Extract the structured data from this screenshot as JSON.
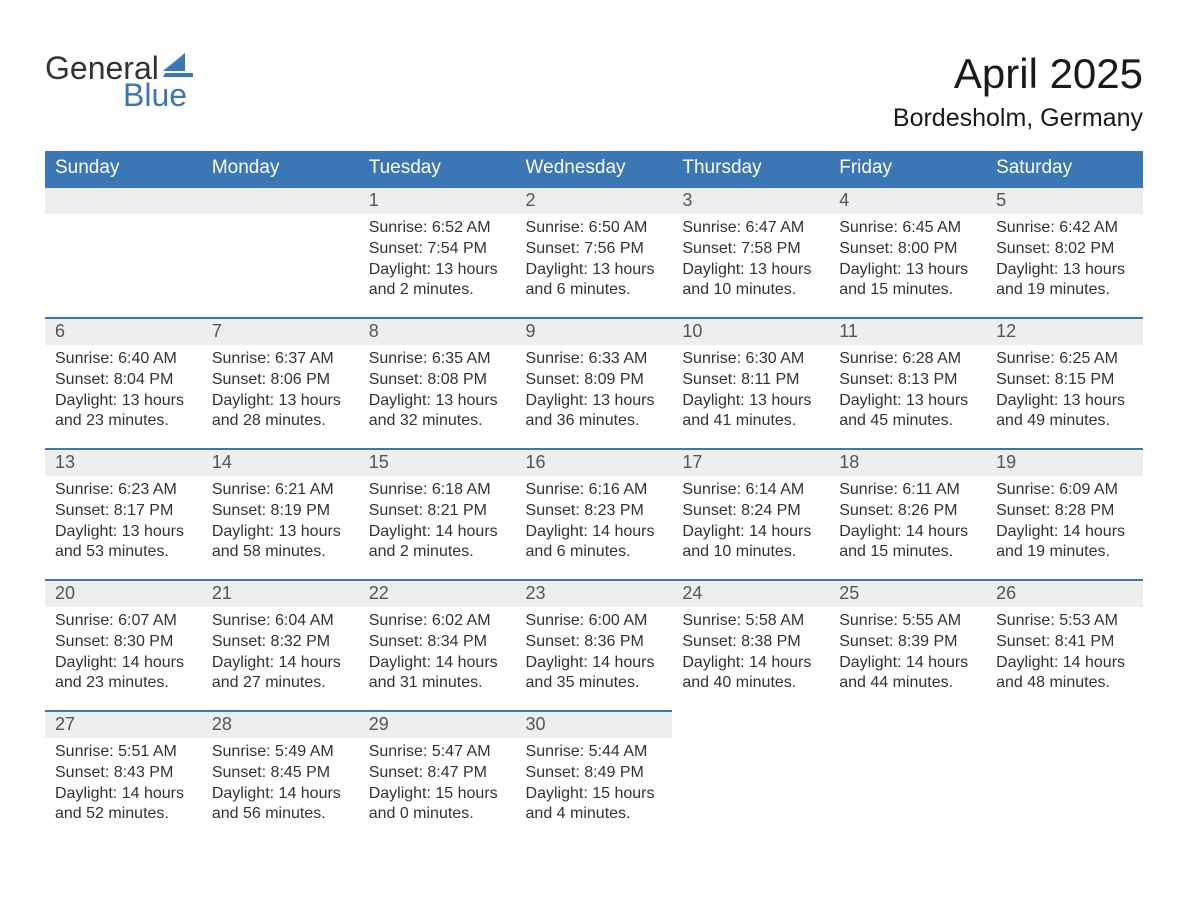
{
  "logo": {
    "text1": "General",
    "text2": "Blue",
    "flag_color": "#3b77b5"
  },
  "title": "April 2025",
  "location": "Bordesholm, Germany",
  "colors": {
    "header_bg": "#3b77b5",
    "header_text": "#ffffff",
    "daynum_bg": "#eeeeee",
    "week_border": "#3b77b5",
    "body_text": "#333333",
    "page_bg": "#ffffff"
  },
  "fonts": {
    "title_size": 42,
    "location_size": 25,
    "dayheader_size": 19,
    "daynum_size": 18,
    "body_size": 16
  },
  "day_headers": [
    "Sunday",
    "Monday",
    "Tuesday",
    "Wednesday",
    "Thursday",
    "Friday",
    "Saturday"
  ],
  "weeks": [
    [
      null,
      null,
      {
        "n": "1",
        "sr": "Sunrise: 6:52 AM",
        "ss": "Sunset: 7:54 PM",
        "dl": "Daylight: 13 hours and 2 minutes."
      },
      {
        "n": "2",
        "sr": "Sunrise: 6:50 AM",
        "ss": "Sunset: 7:56 PM",
        "dl": "Daylight: 13 hours and 6 minutes."
      },
      {
        "n": "3",
        "sr": "Sunrise: 6:47 AM",
        "ss": "Sunset: 7:58 PM",
        "dl": "Daylight: 13 hours and 10 minutes."
      },
      {
        "n": "4",
        "sr": "Sunrise: 6:45 AM",
        "ss": "Sunset: 8:00 PM",
        "dl": "Daylight: 13 hours and 15 minutes."
      },
      {
        "n": "5",
        "sr": "Sunrise: 6:42 AM",
        "ss": "Sunset: 8:02 PM",
        "dl": "Daylight: 13 hours and 19 minutes."
      }
    ],
    [
      {
        "n": "6",
        "sr": "Sunrise: 6:40 AM",
        "ss": "Sunset: 8:04 PM",
        "dl": "Daylight: 13 hours and 23 minutes."
      },
      {
        "n": "7",
        "sr": "Sunrise: 6:37 AM",
        "ss": "Sunset: 8:06 PM",
        "dl": "Daylight: 13 hours and 28 minutes."
      },
      {
        "n": "8",
        "sr": "Sunrise: 6:35 AM",
        "ss": "Sunset: 8:08 PM",
        "dl": "Daylight: 13 hours and 32 minutes."
      },
      {
        "n": "9",
        "sr": "Sunrise: 6:33 AM",
        "ss": "Sunset: 8:09 PM",
        "dl": "Daylight: 13 hours and 36 minutes."
      },
      {
        "n": "10",
        "sr": "Sunrise: 6:30 AM",
        "ss": "Sunset: 8:11 PM",
        "dl": "Daylight: 13 hours and 41 minutes."
      },
      {
        "n": "11",
        "sr": "Sunrise: 6:28 AM",
        "ss": "Sunset: 8:13 PM",
        "dl": "Daylight: 13 hours and 45 minutes."
      },
      {
        "n": "12",
        "sr": "Sunrise: 6:25 AM",
        "ss": "Sunset: 8:15 PM",
        "dl": "Daylight: 13 hours and 49 minutes."
      }
    ],
    [
      {
        "n": "13",
        "sr": "Sunrise: 6:23 AM",
        "ss": "Sunset: 8:17 PM",
        "dl": "Daylight: 13 hours and 53 minutes."
      },
      {
        "n": "14",
        "sr": "Sunrise: 6:21 AM",
        "ss": "Sunset: 8:19 PM",
        "dl": "Daylight: 13 hours and 58 minutes."
      },
      {
        "n": "15",
        "sr": "Sunrise: 6:18 AM",
        "ss": "Sunset: 8:21 PM",
        "dl": "Daylight: 14 hours and 2 minutes."
      },
      {
        "n": "16",
        "sr": "Sunrise: 6:16 AM",
        "ss": "Sunset: 8:23 PM",
        "dl": "Daylight: 14 hours and 6 minutes."
      },
      {
        "n": "17",
        "sr": "Sunrise: 6:14 AM",
        "ss": "Sunset: 8:24 PM",
        "dl": "Daylight: 14 hours and 10 minutes."
      },
      {
        "n": "18",
        "sr": "Sunrise: 6:11 AM",
        "ss": "Sunset: 8:26 PM",
        "dl": "Daylight: 14 hours and 15 minutes."
      },
      {
        "n": "19",
        "sr": "Sunrise: 6:09 AM",
        "ss": "Sunset: 8:28 PM",
        "dl": "Daylight: 14 hours and 19 minutes."
      }
    ],
    [
      {
        "n": "20",
        "sr": "Sunrise: 6:07 AM",
        "ss": "Sunset: 8:30 PM",
        "dl": "Daylight: 14 hours and 23 minutes."
      },
      {
        "n": "21",
        "sr": "Sunrise: 6:04 AM",
        "ss": "Sunset: 8:32 PM",
        "dl": "Daylight: 14 hours and 27 minutes."
      },
      {
        "n": "22",
        "sr": "Sunrise: 6:02 AM",
        "ss": "Sunset: 8:34 PM",
        "dl": "Daylight: 14 hours and 31 minutes."
      },
      {
        "n": "23",
        "sr": "Sunrise: 6:00 AM",
        "ss": "Sunset: 8:36 PM",
        "dl": "Daylight: 14 hours and 35 minutes."
      },
      {
        "n": "24",
        "sr": "Sunrise: 5:58 AM",
        "ss": "Sunset: 8:38 PM",
        "dl": "Daylight: 14 hours and 40 minutes."
      },
      {
        "n": "25",
        "sr": "Sunrise: 5:55 AM",
        "ss": "Sunset: 8:39 PM",
        "dl": "Daylight: 14 hours and 44 minutes."
      },
      {
        "n": "26",
        "sr": "Sunrise: 5:53 AM",
        "ss": "Sunset: 8:41 PM",
        "dl": "Daylight: 14 hours and 48 minutes."
      }
    ],
    [
      {
        "n": "27",
        "sr": "Sunrise: 5:51 AM",
        "ss": "Sunset: 8:43 PM",
        "dl": "Daylight: 14 hours and 52 minutes."
      },
      {
        "n": "28",
        "sr": "Sunrise: 5:49 AM",
        "ss": "Sunset: 8:45 PM",
        "dl": "Daylight: 14 hours and 56 minutes."
      },
      {
        "n": "29",
        "sr": "Sunrise: 5:47 AM",
        "ss": "Sunset: 8:47 PM",
        "dl": "Daylight: 15 hours and 0 minutes."
      },
      {
        "n": "30",
        "sr": "Sunrise: 5:44 AM",
        "ss": "Sunset: 8:49 PM",
        "dl": "Daylight: 15 hours and 4 minutes."
      },
      null,
      null,
      null
    ]
  ]
}
